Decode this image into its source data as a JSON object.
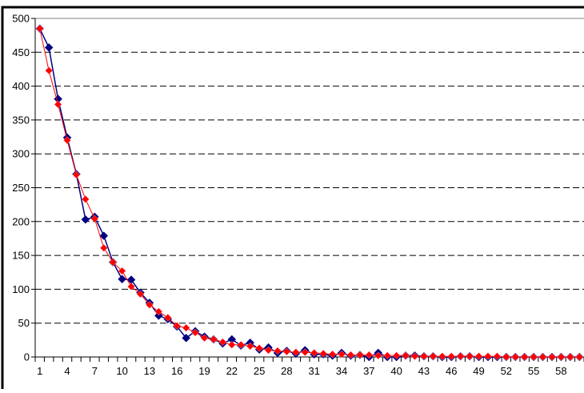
{
  "chart_data": {
    "type": "line",
    "title": "",
    "xlabel": "",
    "ylabel": "",
    "xlim": [
      1,
      60
    ],
    "ylim": [
      0,
      500
    ],
    "y_ticks": [
      0,
      50,
      100,
      150,
      200,
      250,
      300,
      350,
      400,
      450,
      500
    ],
    "x_tick_labels": [
      1,
      4,
      7,
      10,
      13,
      16,
      19,
      22,
      25,
      28,
      31,
      34,
      37,
      40,
      43,
      46,
      49,
      52,
      55,
      58
    ],
    "grid": "horizontal dashed",
    "legend": "none",
    "x": [
      1,
      2,
      3,
      4,
      5,
      6,
      7,
      8,
      9,
      10,
      11,
      12,
      13,
      14,
      15,
      16,
      17,
      18,
      19,
      20,
      21,
      22,
      23,
      24,
      25,
      26,
      27,
      28,
      29,
      30,
      31,
      32,
      33,
      34,
      35,
      36,
      37,
      38,
      39,
      40,
      41,
      42,
      43,
      44,
      45,
      46,
      47,
      48,
      49,
      50,
      51,
      52,
      53,
      54,
      55,
      56,
      57,
      58,
      59,
      60
    ],
    "series": [
      {
        "color": "#000080",
        "marker": "diamond",
        "values": [
          485,
          457,
          381,
          324,
          270,
          203,
          207,
          179,
          140,
          115,
          114,
          95,
          80,
          61,
          56,
          45,
          28,
          38,
          30,
          26,
          20,
          26,
          17,
          21,
          11,
          14,
          6,
          9,
          5,
          10,
          4,
          4,
          2,
          6,
          2,
          3,
          0,
          6,
          0,
          0,
          2,
          2,
          1,
          1,
          0,
          0,
          1,
          1,
          0,
          0,
          0,
          0,
          0,
          0,
          0,
          0,
          0,
          0,
          0,
          0
        ]
      },
      {
        "color": "#ff0000",
        "marker": "diamond",
        "values": [
          485,
          423,
          373,
          320,
          269,
          233,
          204,
          161,
          140,
          127,
          104,
          93,
          77,
          67,
          58,
          46,
          43,
          36,
          28,
          26,
          22,
          18,
          18,
          16,
          13,
          10,
          9,
          8,
          7,
          7,
          6,
          5,
          4,
          4,
          3,
          3,
          3,
          2,
          2,
          2,
          2,
          1,
          1,
          1,
          1,
          1,
          1,
          1,
          1,
          1,
          1,
          0,
          0,
          0,
          0,
          0,
          0,
          0,
          0,
          0
        ]
      }
    ]
  }
}
